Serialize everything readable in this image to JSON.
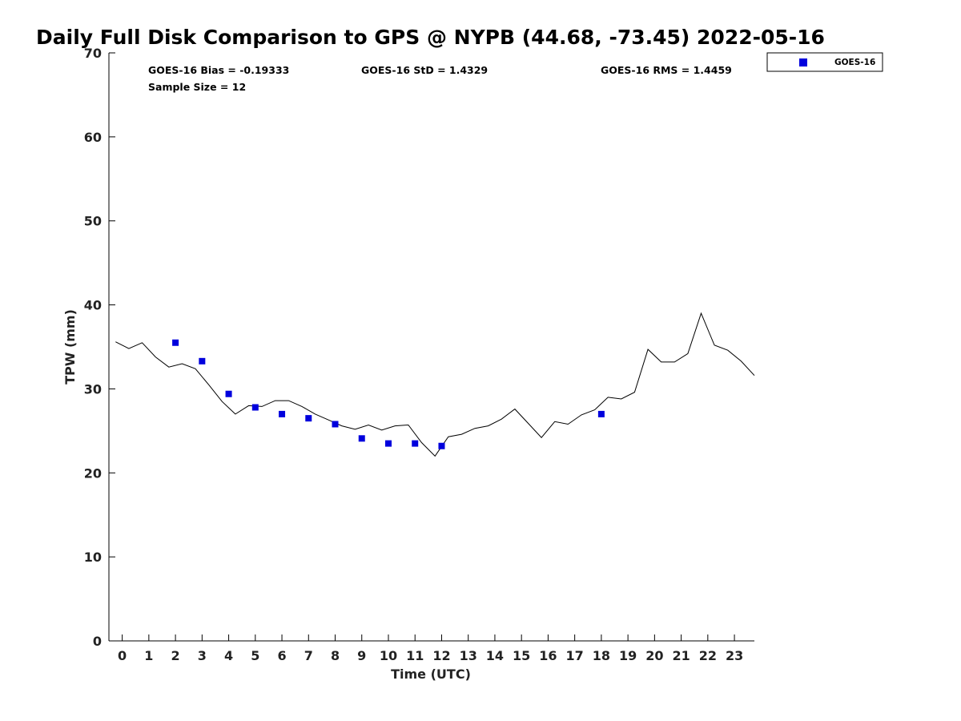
{
  "chart_data": {
    "type": "scatter",
    "title": "Daily Full Disk Comparison to GPS @ NYPB (44.68, -73.45) 2022-05-16",
    "xlabel": "Time (UTC)",
    "ylabel": "TPW (mm)",
    "xlim": [
      -0.5,
      23.75
    ],
    "ylim": [
      0,
      70
    ],
    "x_ticks": [
      0,
      1,
      2,
      3,
      4,
      5,
      6,
      7,
      8,
      9,
      10,
      11,
      12,
      13,
      14,
      15,
      16,
      17,
      18,
      19,
      20,
      21,
      22,
      23
    ],
    "y_ticks": [
      0,
      10,
      20,
      30,
      40,
      50,
      60,
      70
    ],
    "grid": false,
    "legend_position": "top-right",
    "stats": {
      "bias": "GOES-16 Bias = -0.19333",
      "std": "GOES-16 StD = 1.4329",
      "rms": "GOES-16 RMS = 1.4459",
      "sample_size": "Sample Size = 12"
    },
    "series": [
      {
        "name": "GOES-16",
        "kind": "scatter",
        "color": "#0000dd",
        "marker": "square",
        "points": [
          [
            2,
            35.5
          ],
          [
            3,
            33.3
          ],
          [
            4,
            29.4
          ],
          [
            5,
            27.8
          ],
          [
            6,
            27.0
          ],
          [
            7,
            26.5
          ],
          [
            8,
            25.8
          ],
          [
            9,
            24.1
          ],
          [
            10,
            23.5
          ],
          [
            11,
            23.5
          ],
          [
            12,
            23.2
          ],
          [
            18,
            27.0
          ]
        ]
      },
      {
        "kind": "line",
        "color": "#000000",
        "points": [
          [
            -0.25,
            35.6
          ],
          [
            0.25,
            34.8
          ],
          [
            0.75,
            35.5
          ],
          [
            1.25,
            33.8
          ],
          [
            1.75,
            32.6
          ],
          [
            2.25,
            33.0
          ],
          [
            2.75,
            32.4
          ],
          [
            3.25,
            30.5
          ],
          [
            3.75,
            28.5
          ],
          [
            4.25,
            27.0
          ],
          [
            4.75,
            28.0
          ],
          [
            5.25,
            27.9
          ],
          [
            5.75,
            28.6
          ],
          [
            6.25,
            28.6
          ],
          [
            6.75,
            27.9
          ],
          [
            7.25,
            27.0
          ],
          [
            7.75,
            26.3
          ],
          [
            8.25,
            25.6
          ],
          [
            8.75,
            25.2
          ],
          [
            9.25,
            25.7
          ],
          [
            9.75,
            25.1
          ],
          [
            10.25,
            25.6
          ],
          [
            10.75,
            25.7
          ],
          [
            11.25,
            23.6
          ],
          [
            11.75,
            22.0
          ],
          [
            12.25,
            24.3
          ],
          [
            12.75,
            24.6
          ],
          [
            13.25,
            25.3
          ],
          [
            13.75,
            25.6
          ],
          [
            14.25,
            26.4
          ],
          [
            14.75,
            27.6
          ],
          [
            15.25,
            25.9
          ],
          [
            15.75,
            24.2
          ],
          [
            16.25,
            26.1
          ],
          [
            16.75,
            25.8
          ],
          [
            17.25,
            26.9
          ],
          [
            17.75,
            27.5
          ],
          [
            18.25,
            29.0
          ],
          [
            18.75,
            28.8
          ],
          [
            19.25,
            29.6
          ],
          [
            19.75,
            34.7
          ],
          [
            20.25,
            33.2
          ],
          [
            20.75,
            33.2
          ],
          [
            21.25,
            34.2
          ],
          [
            21.75,
            39.0
          ],
          [
            22.25,
            35.2
          ],
          [
            22.75,
            34.6
          ],
          [
            23.25,
            33.3
          ],
          [
            23.75,
            31.6
          ]
        ]
      }
    ]
  }
}
